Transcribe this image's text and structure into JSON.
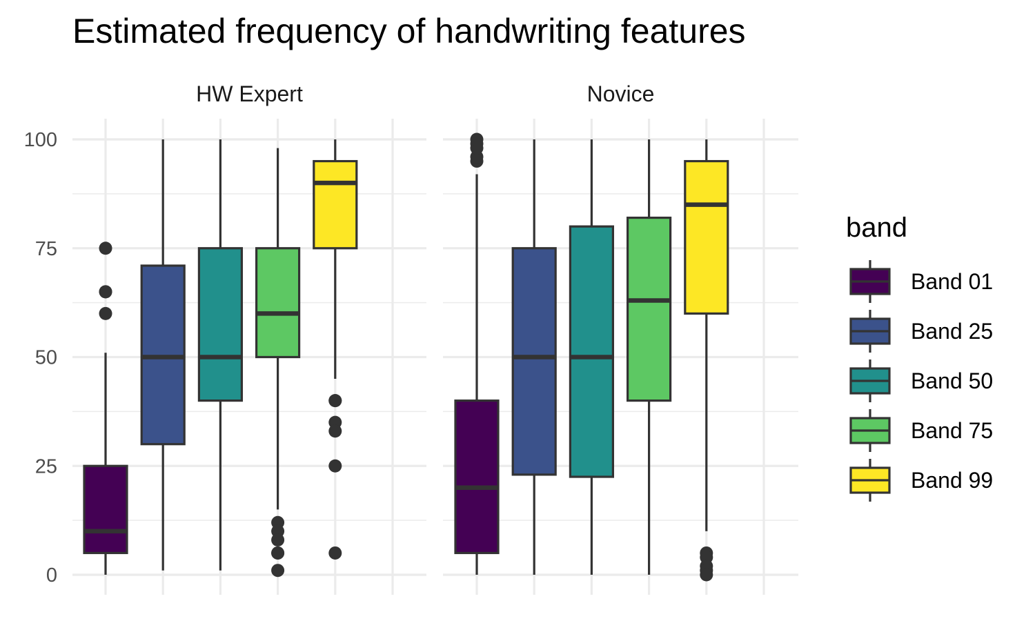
{
  "chart_data": {
    "type": "boxplot",
    "title": "Estimated frequency of handwriting features",
    "xlabel": "",
    "ylabel": "",
    "ylim": [
      0,
      100
    ],
    "y_ticks": [
      0,
      25,
      50,
      75,
      100
    ],
    "grid": true,
    "legend": {
      "title": "band",
      "position": "right",
      "entries": [
        {
          "label": "Band 01",
          "color": "#440154"
        },
        {
          "label": "Band 25",
          "color": "#3B528B"
        },
        {
          "label": "Band 50",
          "color": "#21908C"
        },
        {
          "label": "Band 75",
          "color": "#5DC863"
        },
        {
          "label": "Band 99",
          "color": "#FDE725"
        }
      ]
    },
    "panels": [
      {
        "name": "HW Expert",
        "boxes": [
          {
            "band": "Band 01",
            "min": 0,
            "q1": 5,
            "median": 10,
            "q3": 25,
            "max": 51,
            "outliers": [
              60,
              65,
              65,
              75
            ]
          },
          {
            "band": "Band 25",
            "min": 1,
            "q1": 30,
            "median": 50,
            "q3": 71,
            "max": 100,
            "outliers": []
          },
          {
            "band": "Band 50",
            "min": 1,
            "q1": 40,
            "median": 50,
            "q3": 75,
            "max": 100,
            "outliers": []
          },
          {
            "band": "Band 75",
            "min": 15,
            "q1": 50,
            "median": 60,
            "q3": 75,
            "max": 98,
            "outliers": [
              12,
              10,
              8,
              5,
              5,
              1
            ]
          },
          {
            "band": "Band 99",
            "min": 45,
            "q1": 75,
            "median": 90,
            "q3": 95,
            "max": 100,
            "outliers": [
              40,
              40,
              35,
              33,
              25,
              5
            ]
          }
        ]
      },
      {
        "name": "Novice",
        "boxes": [
          {
            "band": "Band 01",
            "min": 0,
            "q1": 5,
            "median": 20,
            "q3": 40,
            "max": 92,
            "outliers": [
              95,
              96,
              98,
              99,
              100
            ]
          },
          {
            "band": "Band 25",
            "min": 0,
            "q1": 23,
            "median": 50,
            "q3": 75,
            "max": 100,
            "outliers": []
          },
          {
            "band": "Band 50",
            "min": 0,
            "q1": 22.5,
            "median": 50,
            "q3": 80,
            "max": 100,
            "outliers": []
          },
          {
            "band": "Band 75",
            "min": 0,
            "q1": 40,
            "median": 63,
            "q3": 82,
            "max": 100,
            "outliers": []
          },
          {
            "band": "Band 99",
            "min": 10,
            "q1": 60,
            "median": 85,
            "q3": 95,
            "max": 100,
            "outliers": [
              5,
              4,
              2,
              1,
              0
            ]
          }
        ]
      }
    ]
  }
}
